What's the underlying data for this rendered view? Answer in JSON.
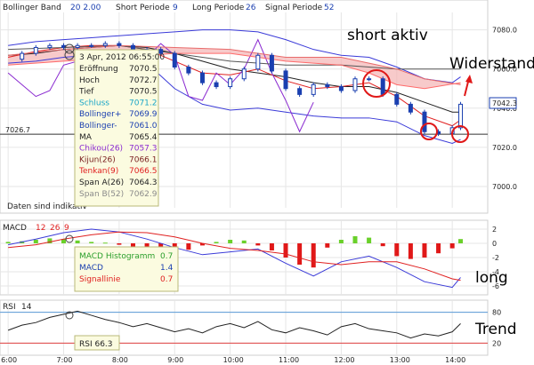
{
  "chart_data": [
    {
      "type": "line",
      "panel": "price",
      "header": {
        "items": [
          {
            "label": "Bollinger Band",
            "value": "20 2.00"
          },
          {
            "label": "Short Periode",
            "value": "9"
          },
          {
            "label": "Long Periode",
            "value": "26"
          },
          {
            "label": "Signal Periode",
            "value": "52"
          }
        ]
      },
      "ylim": [
        6990,
        7088
      ],
      "yticks": [
        "7080.0",
        "7060.0",
        "7040.0",
        "7020.0",
        "7000.0"
      ],
      "ytick_values": [
        7080,
        7060,
        7040,
        7020,
        7000
      ],
      "last_price": "7042.3",
      "last_price_value": 7042.3,
      "hline_label": "7026.7",
      "hline_value": 7026.7,
      "x_time_labels": [
        "6:00",
        "7:00",
        "8:00",
        "9:00",
        "10:00",
        "11:00",
        "12:00",
        "13:00",
        "14:00"
      ],
      "x_time_hours": [
        6,
        7,
        8,
        9,
        10,
        11,
        12,
        13,
        14
      ],
      "x_hours_range": [
        5.95,
        14.35
      ],
      "footnote": "Daten sind indikativ",
      "series": [
        {
          "name": "close",
          "color": "#1a3fb0",
          "x": [
            6.0,
            6.25,
            6.5,
            6.75,
            7.0,
            7.25,
            7.5,
            7.75,
            8.0,
            8.25,
            8.5,
            8.75,
            9.0,
            9.25,
            9.5,
            9.75,
            10.0,
            10.25,
            10.5,
            10.75,
            11.0,
            11.25,
            11.5,
            11.75,
            12.0,
            12.25,
            12.5,
            12.75,
            13.0,
            13.25,
            13.5,
            13.75,
            14.0,
            14.15
          ],
          "y": [
            7065,
            7068,
            7071,
            7072,
            7071,
            7072,
            7072,
            7073,
            7072,
            7070,
            7070,
            7068,
            7061,
            7058,
            7053,
            7051,
            7055,
            7060,
            7067,
            7059,
            7050,
            7047,
            7052,
            7051,
            7049,
            7055,
            7055,
            7047,
            7042,
            7038,
            7028,
            7027,
            7030,
            7042
          ]
        },
        {
          "name": "bollinger-upper",
          "color": "#3a3ad8",
          "x": [
            6.0,
            6.5,
            7.0,
            7.5,
            8.0,
            8.5,
            9.0,
            9.5,
            10.0,
            10.5,
            11.0,
            11.5,
            12.0,
            12.5,
            13.0,
            13.5,
            14.0,
            14.15
          ],
          "y": [
            7072,
            7074,
            7075,
            7076,
            7077,
            7078,
            7079,
            7080,
            7080,
            7079,
            7075,
            7070,
            7067,
            7066,
            7061,
            7055,
            7053,
            7056
          ]
        },
        {
          "name": "bollinger-lower",
          "color": "#3a3ad8",
          "x": [
            6.0,
            6.5,
            7.0,
            7.5,
            8.0,
            8.5,
            9.0,
            9.5,
            10.0,
            10.5,
            11.0,
            11.5,
            12.0,
            12.5,
            13.0,
            13.5,
            14.0,
            14.15
          ],
          "y": [
            7063,
            7064,
            7066,
            7067,
            7066,
            7063,
            7050,
            7042,
            7039,
            7040,
            7038,
            7036,
            7035,
            7035,
            7033,
            7026,
            7022,
            7024
          ]
        },
        {
          "name": "ma",
          "color": "#222222",
          "x": [
            6.0,
            6.5,
            7.0,
            7.5,
            8.0,
            8.5,
            9.0,
            9.5,
            10.0,
            10.5,
            11.0,
            11.5,
            12.0,
            12.5,
            13.0,
            13.5,
            14.0,
            14.15
          ],
          "y": [
            7067,
            7068,
            7070,
            7071,
            7072,
            7071,
            7068,
            7064,
            7060,
            7058,
            7056,
            7053,
            7051,
            7051,
            7048,
            7043,
            7038,
            7038
          ]
        },
        {
          "name": "tenkan",
          "color": "#e02020",
          "x": [
            6.0,
            6.5,
            7.0,
            7.5,
            8.0,
            8.5,
            9.0,
            9.5,
            10.0,
            10.5,
            11.0,
            11.5,
            12.0,
            12.5,
            13.0,
            13.5,
            14.0,
            14.15
          ],
          "y": [
            7066,
            7069,
            7071,
            7072,
            7072,
            7070,
            7064,
            7058,
            7057,
            7060,
            7054,
            7050,
            7051,
            7053,
            7046,
            7036,
            7031,
            7034
          ]
        },
        {
          "name": "chikou",
          "color": "#8a2ad0",
          "x": [
            6.0,
            6.25,
            6.5,
            6.75,
            7.0,
            7.25,
            7.5,
            7.75,
            8.0,
            8.25,
            8.5,
            8.75,
            9.0,
            9.25,
            9.5,
            9.75,
            10.0,
            10.25,
            10.5,
            10.75,
            11.0,
            11.25,
            11.5
          ],
          "y": [
            7058,
            7052,
            7046,
            7049,
            7062,
            7064,
            7060,
            7044,
            7050,
            7070,
            7066,
            7073,
            7067,
            7046,
            7044,
            7058,
            7052,
            7060,
            7075,
            7058,
            7044,
            7028,
            7043
          ]
        },
        {
          "name": "kijun",
          "color": "#555555",
          "x": [
            6.0,
            7.0,
            8.0,
            9.0,
            10.0,
            11.0,
            12.0,
            13.0,
            14.15
          ],
          "y": [
            7070,
            7071,
            7072,
            7068,
            7064,
            7062,
            7062,
            7060,
            7060
          ]
        },
        {
          "name": "span-a",
          "color": "#e86a6a",
          "x": [
            6.0,
            7.0,
            8.0,
            9.0,
            10.0,
            11.0,
            12.0,
            12.5,
            13.0,
            13.5,
            14.15
          ],
          "y": [
            7067,
            7070,
            7072,
            7071,
            7070,
            7066,
            7066,
            7063,
            7060,
            7055,
            7052
          ]
        },
        {
          "name": "span-b",
          "color": "#ff6a6a",
          "x": [
            6.0,
            7.0,
            8.0,
            9.0,
            10.0,
            11.0,
            12.0,
            12.5,
            13.0,
            13.5,
            14.15
          ],
          "y": [
            7062,
            7064,
            7066,
            7068,
            7068,
            7064,
            7062,
            7058,
            7052,
            7050,
            7053
          ]
        }
      ]
    },
    {
      "type": "bar",
      "panel": "macd",
      "header": {
        "label": "MACD",
        "params": [
          "12",
          "26",
          "9"
        ]
      },
      "ylim": [
        -7,
        3
      ],
      "yticks": [
        "2",
        "0",
        "-2",
        "-4",
        "-6"
      ],
      "ytick_values": [
        2,
        0,
        -2,
        -4,
        -6
      ],
      "histogram": {
        "x": [
          6.0,
          6.25,
          6.5,
          6.75,
          7.0,
          7.25,
          7.5,
          7.75,
          8.0,
          8.25,
          8.5,
          8.75,
          9.0,
          9.25,
          9.5,
          9.75,
          10.0,
          10.25,
          10.5,
          10.75,
          11.0,
          11.25,
          11.5,
          11.75,
          12.0,
          12.25,
          12.5,
          12.75,
          13.0,
          13.25,
          13.5,
          13.75,
          14.0,
          14.15
        ],
        "values": [
          0.2,
          0.3,
          0.5,
          0.7,
          0.6,
          0.4,
          0.2,
          0.1,
          -0.2,
          -0.5,
          -0.8,
          -1.2,
          -1.5,
          -0.9,
          -0.3,
          0.2,
          0.5,
          0.4,
          -0.3,
          -1.0,
          -2.0,
          -3.0,
          -3.4,
          -0.6,
          0.5,
          1.0,
          0.8,
          -0.4,
          -1.8,
          -2.2,
          -2.0,
          -1.4,
          -0.7,
          0.6
        ]
      },
      "series": [
        {
          "name": "macd",
          "color": "#3a3ad8",
          "x": [
            6.0,
            6.5,
            7.0,
            7.5,
            8.0,
            8.5,
            9.0,
            9.5,
            10.0,
            10.5,
            11.0,
            11.5,
            12.0,
            12.5,
            13.0,
            13.5,
            14.0,
            14.15
          ],
          "y": [
            -0.2,
            0.6,
            1.5,
            2.0,
            1.6,
            0.6,
            -0.6,
            -1.6,
            -1.2,
            -0.8,
            -2.8,
            -4.6,
            -2.6,
            -1.8,
            -3.4,
            -5.4,
            -6.2,
            -4.8
          ]
        },
        {
          "name": "signal",
          "color": "#e02020",
          "x": [
            6.0,
            6.5,
            7.0,
            7.5,
            8.0,
            8.5,
            9.0,
            9.5,
            10.0,
            10.5,
            11.0,
            11.5,
            12.0,
            12.5,
            13.0,
            13.5,
            14.0,
            14.15
          ],
          "y": [
            -0.6,
            -0.2,
            0.6,
            1.2,
            1.6,
            1.5,
            0.9,
            0.0,
            -0.7,
            -1.0,
            -1.5,
            -2.6,
            -3.0,
            -2.6,
            -2.6,
            -3.6,
            -5.0,
            -5.2
          ]
        }
      ]
    },
    {
      "type": "line",
      "panel": "rsi",
      "header": {
        "label": "RSI",
        "param": "14"
      },
      "ylim": [
        0,
        100
      ],
      "yticks": [
        "80",
        "20"
      ],
      "ytick_values": [
        80,
        20
      ],
      "series": [
        {
          "name": "rsi",
          "color": "#222222",
          "x": [
            6.0,
            6.25,
            6.5,
            6.75,
            7.0,
            7.25,
            7.5,
            7.75,
            8.0,
            8.25,
            8.5,
            8.75,
            9.0,
            9.25,
            9.5,
            9.75,
            10.0,
            10.25,
            10.5,
            10.75,
            11.0,
            11.25,
            11.5,
            11.75,
            12.0,
            12.25,
            12.5,
            12.75,
            13.0,
            13.25,
            13.5,
            13.75,
            14.0,
            14.15
          ],
          "y": [
            45,
            55,
            60,
            70,
            76,
            82,
            74,
            66,
            60,
            52,
            58,
            50,
            42,
            48,
            40,
            52,
            58,
            50,
            62,
            46,
            40,
            50,
            44,
            36,
            52,
            58,
            48,
            44,
            40,
            30,
            38,
            34,
            42,
            58
          ]
        }
      ],
      "value_label": "RSI 66.3"
    }
  ],
  "tooltip": {
    "date": "3 Apr, 2012 06:55:00",
    "rows": [
      {
        "label": "Eröffnung",
        "value": "7070.5",
        "color": "#222222"
      },
      {
        "label": "Hoch",
        "value": "7072.7",
        "color": "#222222"
      },
      {
        "label": "Tief",
        "value": "7070.5",
        "color": "#222222"
      },
      {
        "label": "Schluss",
        "value": "7071.2",
        "color": "#1aa6c8"
      },
      {
        "label": "Bollinger+",
        "value": "7069.9",
        "color": "#1a3fb0"
      },
      {
        "label": "Bollinger-",
        "value": "7061.0",
        "color": "#1a3fb0"
      },
      {
        "label": "MA",
        "value": "7065.4",
        "color": "#222222"
      },
      {
        "label": "Chikou(26)",
        "value": "7057.3",
        "color": "#8a2ad0"
      },
      {
        "label": "Kijun(26)",
        "value": "7066.1",
        "color": "#7a1f1f"
      },
      {
        "label": "Tenkan(9)",
        "value": "7066.5",
        "color": "#e02020"
      },
      {
        "label": "Span A(26)",
        "value": "7064.3",
        "color": "#222222"
      },
      {
        "label": "Span B(52)",
        "value": "7062.9",
        "color": "#8a8a8a"
      }
    ]
  },
  "macd_tooltip": {
    "rows": [
      {
        "label": "MACD Histogramm",
        "value": "0.7",
        "color": "#2a9e2a"
      },
      {
        "label": "MACD",
        "value": "1.4",
        "color": "#1a3fb0"
      },
      {
        "label": "Signallinie",
        "value": "0.7",
        "color": "#e02020"
      }
    ]
  },
  "annotations": {
    "short": "short aktiv",
    "resistance": "Widerstand",
    "long": "long",
    "trend": "Trend"
  }
}
